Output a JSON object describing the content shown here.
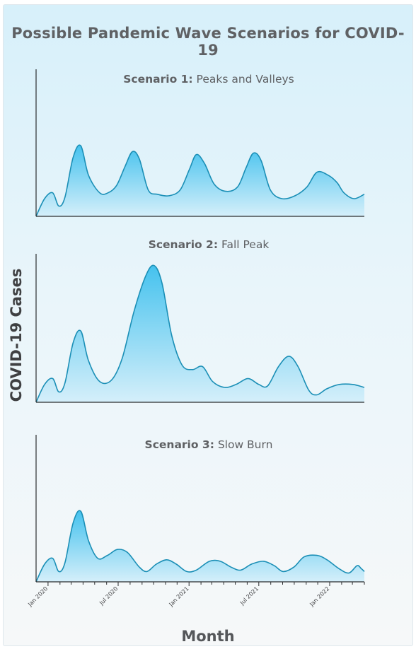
{
  "chart_data": {
    "type": "area",
    "title": "Possible Pandemic Wave Scenarios for COVID-19",
    "xlabel": "Month",
    "ylabel": "COVID-19 Cases",
    "x_range": [
      "2019-12-15",
      "2022-04-15"
    ],
    "y_range": [
      0,
      100
    ],
    "x_ticks": [
      {
        "date": "2020-01-15",
        "label": "Jan 2020"
      },
      {
        "date": "2020-07-15",
        "label": "Jul 2020"
      },
      {
        "date": "2021-01-15",
        "label": "Jan 2021"
      },
      {
        "date": "2021-07-15",
        "label": "Jul 2021"
      },
      {
        "date": "2022-01-15",
        "label": "Jan 2022"
      }
    ],
    "grid": false,
    "y_tick_labels": false,
    "fill_color_top": "#45c2ee",
    "fill_color_bottom": "#d5effa",
    "line_color": "#1b8fb6",
    "panels": [
      {
        "title_bold": "Scenario 1:",
        "title_rest": "Peaks and Valleys",
        "points": [
          [
            "2019-12-15",
            0
          ],
          [
            "2020-01-06",
            12
          ],
          [
            "2020-01-27",
            16
          ],
          [
            "2020-02-12",
            7
          ],
          [
            "2020-02-28",
            13
          ],
          [
            "2020-03-20",
            40
          ],
          [
            "2020-04-09",
            48
          ],
          [
            "2020-04-29",
            28
          ],
          [
            "2020-05-28",
            16
          ],
          [
            "2020-06-19",
            16
          ],
          [
            "2020-07-11",
            21
          ],
          [
            "2020-08-02",
            34
          ],
          [
            "2020-08-21",
            44
          ],
          [
            "2020-09-08",
            39
          ],
          [
            "2020-10-01",
            18
          ],
          [
            "2020-10-25",
            15
          ],
          [
            "2020-11-24",
            14
          ],
          [
            "2020-12-23",
            18
          ],
          [
            "2021-01-16",
            32
          ],
          [
            "2021-02-03",
            42
          ],
          [
            "2021-02-24",
            36
          ],
          [
            "2021-03-21",
            22
          ],
          [
            "2021-04-20",
            17
          ],
          [
            "2021-05-21",
            20
          ],
          [
            "2021-06-12",
            33
          ],
          [
            "2021-07-01",
            43
          ],
          [
            "2021-07-21",
            38
          ],
          [
            "2021-08-14",
            18
          ],
          [
            "2021-09-13",
            12
          ],
          [
            "2021-10-17",
            14
          ],
          [
            "2021-11-17",
            20
          ],
          [
            "2021-12-13",
            30
          ],
          [
            "2022-01-11",
            28
          ],
          [
            "2022-02-03",
            23
          ],
          [
            "2022-02-21",
            16
          ],
          [
            "2022-03-19",
            12
          ],
          [
            "2022-04-15",
            15
          ]
        ]
      },
      {
        "title_bold": "Scenario 2:",
        "title_rest": "Fall Peak",
        "points": [
          [
            "2019-12-15",
            0
          ],
          [
            "2020-01-06",
            12
          ],
          [
            "2020-01-27",
            16
          ],
          [
            "2020-02-12",
            7
          ],
          [
            "2020-02-28",
            13
          ],
          [
            "2020-03-20",
            40
          ],
          [
            "2020-04-09",
            48
          ],
          [
            "2020-04-29",
            28
          ],
          [
            "2020-05-28",
            14
          ],
          [
            "2020-06-28",
            15
          ],
          [
            "2020-07-26",
            30
          ],
          [
            "2020-08-26",
            62
          ],
          [
            "2020-09-26",
            86
          ],
          [
            "2020-10-17",
            92
          ],
          [
            "2020-11-06",
            80
          ],
          [
            "2020-12-01",
            45
          ],
          [
            "2020-12-28",
            25
          ],
          [
            "2021-01-24",
            22
          ],
          [
            "2021-02-19",
            24
          ],
          [
            "2021-03-17",
            14
          ],
          [
            "2021-04-17",
            10
          ],
          [
            "2021-05-17",
            12
          ],
          [
            "2021-06-17",
            16
          ],
          [
            "2021-07-15",
            12
          ],
          [
            "2021-08-07",
            11
          ],
          [
            "2021-09-04",
            24
          ],
          [
            "2021-10-01",
            31
          ],
          [
            "2021-10-25",
            24
          ],
          [
            "2021-11-22",
            8
          ],
          [
            "2021-12-13",
            5
          ],
          [
            "2022-01-07",
            9
          ],
          [
            "2022-02-09",
            12
          ],
          [
            "2022-03-16",
            12
          ],
          [
            "2022-04-15",
            10
          ]
        ]
      },
      {
        "title_bold": "Scenario 3:",
        "title_rest": "Slow Burn",
        "points": [
          [
            "2019-12-15",
            0
          ],
          [
            "2020-01-06",
            12
          ],
          [
            "2020-01-27",
            16
          ],
          [
            "2020-02-12",
            7
          ],
          [
            "2020-02-28",
            13
          ],
          [
            "2020-03-20",
            40
          ],
          [
            "2020-04-09",
            48
          ],
          [
            "2020-04-29",
            28
          ],
          [
            "2020-05-23",
            16
          ],
          [
            "2020-06-17",
            18
          ],
          [
            "2020-07-13",
            22
          ],
          [
            "2020-08-08",
            20
          ],
          [
            "2020-09-08",
            10
          ],
          [
            "2020-09-28",
            7
          ],
          [
            "2020-10-22",
            12
          ],
          [
            "2020-11-18",
            15
          ],
          [
            "2020-12-13",
            12
          ],
          [
            "2021-01-09",
            7
          ],
          [
            "2021-02-03",
            8
          ],
          [
            "2021-03-09",
            14
          ],
          [
            "2021-04-06",
            14
          ],
          [
            "2021-05-04",
            10
          ],
          [
            "2021-05-29",
            8
          ],
          [
            "2021-06-26",
            12
          ],
          [
            "2021-07-27",
            14
          ],
          [
            "2021-08-24",
            11
          ],
          [
            "2021-09-16",
            7
          ],
          [
            "2021-10-14",
            10
          ],
          [
            "2021-11-10",
            17
          ],
          [
            "2021-12-13",
            18
          ],
          [
            "2022-01-08",
            15
          ],
          [
            "2022-02-08",
            9
          ],
          [
            "2022-03-06",
            6
          ],
          [
            "2022-03-27",
            11
          ],
          [
            "2022-04-07",
            9
          ],
          [
            "2022-04-15",
            7
          ]
        ]
      }
    ]
  }
}
